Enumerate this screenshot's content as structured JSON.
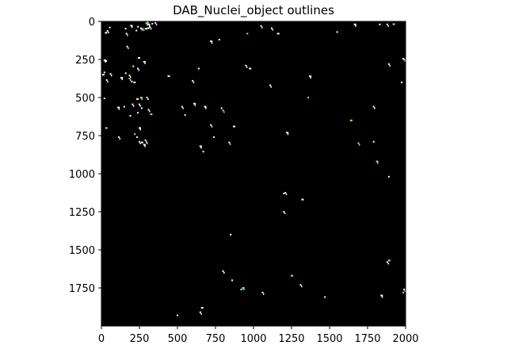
{
  "figure": {
    "title": "DAB_Nuclei_object outlines",
    "x_ticks": [
      "0",
      "250",
      "500",
      "750",
      "1000",
      "1250",
      "1500",
      "1750",
      "2000"
    ],
    "y_ticks": [
      "0",
      "250",
      "500",
      "750",
      "1000",
      "1250",
      "1500",
      "1750"
    ],
    "x_range": [
      0,
      2000
    ],
    "y_range": [
      0,
      2000
    ],
    "background_color": "#000000",
    "outline_colors": {
      "white": "#ffffff",
      "green": "#7dff7d"
    }
  },
  "specks": [
    [
      310,
      20,
      "w"
    ],
    [
      335,
      15,
      "w"
    ],
    [
      355,
      10,
      "w"
    ],
    [
      305,
      45,
      "w"
    ],
    [
      320,
      38,
      "w"
    ],
    [
      305,
      8,
      "w"
    ],
    [
      295,
      12,
      "g"
    ],
    [
      230,
      60,
      "w"
    ],
    [
      260,
      45,
      "w"
    ],
    [
      290,
      48,
      "w"
    ],
    [
      272,
      48,
      "g"
    ],
    [
      160,
      48,
      "w"
    ],
    [
      195,
      28,
      "w"
    ],
    [
      240,
      35,
      "w"
    ],
    [
      165,
      80,
      "w"
    ],
    [
      28,
      75,
      "w"
    ],
    [
      40,
      62,
      "w"
    ],
    [
      55,
      40,
      "w"
    ],
    [
      20,
      255,
      "w"
    ],
    [
      32,
      260,
      "w"
    ],
    [
      170,
      165,
      "w"
    ],
    [
      245,
      240,
      "w"
    ],
    [
      240,
      310,
      "w"
    ],
    [
      210,
      295,
      "w"
    ],
    [
      280,
      265,
      "w"
    ],
    [
      200,
      395,
      "w"
    ],
    [
      185,
      355,
      "w"
    ],
    [
      215,
      400,
      "w"
    ],
    [
      185,
      375,
      "g"
    ],
    [
      160,
      340,
      "w"
    ],
    [
      130,
      370,
      "w"
    ],
    [
      20,
      335,
      "w"
    ],
    [
      35,
      385,
      "w"
    ],
    [
      10,
      350,
      "w"
    ],
    [
      60,
      345,
      "w"
    ],
    [
      20,
      505,
      "w"
    ],
    [
      110,
      565,
      "w"
    ],
    [
      150,
      560,
      "w"
    ],
    [
      205,
      545,
      "w"
    ],
    [
      235,
      510,
      "w"
    ],
    [
      250,
      545,
      "w"
    ],
    [
      265,
      570,
      "w"
    ],
    [
      260,
      500,
      "g"
    ],
    [
      240,
      600,
      "w"
    ],
    [
      310,
      580,
      "w"
    ],
    [
      325,
      610,
      "g"
    ],
    [
      300,
      500,
      "w"
    ],
    [
      190,
      620,
      "w"
    ],
    [
      250,
      700,
      "w"
    ],
    [
      235,
      760,
      "w"
    ],
    [
      250,
      790,
      "w"
    ],
    [
      265,
      795,
      "w"
    ],
    [
      290,
      780,
      "w"
    ],
    [
      300,
      800,
      "g"
    ],
    [
      280,
      810,
      "w"
    ],
    [
      220,
      740,
      "g"
    ],
    [
      115,
      760,
      "w"
    ],
    [
      30,
      700,
      "g"
    ],
    [
      530,
      560,
      "w"
    ],
    [
      550,
      615,
      "w"
    ],
    [
      680,
      560,
      "w"
    ],
    [
      790,
      570,
      "w"
    ],
    [
      800,
      585,
      "g"
    ],
    [
      870,
      690,
      "w"
    ],
    [
      720,
      680,
      "w"
    ],
    [
      740,
      760,
      "w"
    ],
    [
      650,
      820,
      "w"
    ],
    [
      670,
      855,
      "w"
    ],
    [
      840,
      795,
      "w"
    ],
    [
      440,
      360,
      "w"
    ],
    [
      600,
      390,
      "w"
    ],
    [
      640,
      310,
      "w"
    ],
    [
      720,
      130,
      "w"
    ],
    [
      775,
      120,
      "w"
    ],
    [
      950,
      290,
      "w"
    ],
    [
      975,
      310,
      "w"
    ],
    [
      1110,
      420,
      "w"
    ],
    [
      1360,
      500,
      "g"
    ],
    [
      1370,
      360,
      "w"
    ],
    [
      1200,
      1130,
      "w"
    ],
    [
      1210,
      1125,
      "w"
    ],
    [
      1320,
      1170,
      "w"
    ],
    [
      1200,
      1250,
      "w"
    ],
    [
      850,
      1400,
      "w"
    ],
    [
      1220,
      730,
      "w"
    ],
    [
      960,
      80,
      "g"
    ],
    [
      1050,
      30,
      "w"
    ],
    [
      1160,
      80,
      "w"
    ],
    [
      1120,
      45,
      "w"
    ],
    [
      1550,
      70,
      "w"
    ],
    [
      1665,
      20,
      "w"
    ],
    [
      1830,
      20,
      "w"
    ],
    [
      1880,
      20,
      "w"
    ],
    [
      1920,
      18,
      "g"
    ],
    [
      1890,
      280,
      "w"
    ],
    [
      1985,
      245,
      "w"
    ],
    [
      1990,
      250,
      "g"
    ],
    [
      1975,
      400,
      "w"
    ],
    [
      1790,
      560,
      "w"
    ],
    [
      1640,
      650,
      "g"
    ],
    [
      1690,
      800,
      "g"
    ],
    [
      1790,
      790,
      "w"
    ],
    [
      1810,
      920,
      "g"
    ],
    [
      1890,
      1020,
      "w"
    ],
    [
      1880,
      1580,
      "w"
    ],
    [
      1890,
      1570,
      "g"
    ],
    [
      1990,
      1760,
      "w"
    ],
    [
      1985,
      1780,
      "g"
    ],
    [
      1840,
      1800,
      "w"
    ],
    [
      1470,
      1810,
      "w"
    ],
    [
      1310,
      1730,
      "w"
    ],
    [
      1250,
      1670,
      "g"
    ],
    [
      1060,
      1780,
      "w"
    ],
    [
      920,
      1760,
      "w"
    ],
    [
      930,
      1750,
      "g"
    ],
    [
      860,
      1700,
      "w"
    ],
    [
      800,
      1640,
      "w"
    ],
    [
      660,
      1880,
      "w"
    ],
    [
      650,
      1910,
      "w"
    ],
    [
      500,
      1930,
      "w"
    ],
    [
      610,
      540,
      "w"
    ]
  ]
}
